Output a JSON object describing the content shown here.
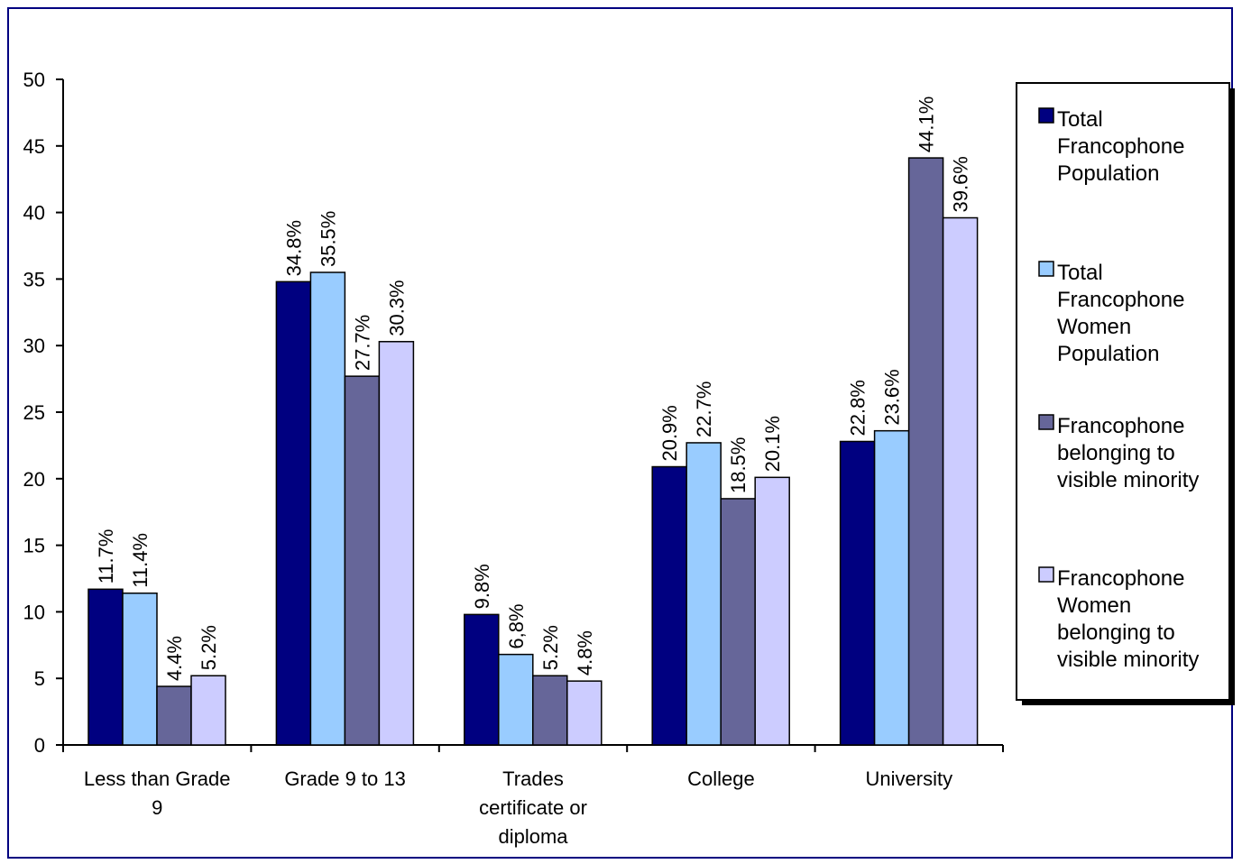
{
  "chart_data": {
    "type": "bar",
    "title": "",
    "xlabel": "",
    "ylabel": "",
    "ylim": [
      0,
      50
    ],
    "yticks": [
      0,
      5,
      10,
      15,
      20,
      25,
      30,
      35,
      40,
      45,
      50
    ],
    "grid": false,
    "legend_position": "right",
    "categories": [
      [
        "Less than Grade",
        "9"
      ],
      [
        "Grade 9 to 13"
      ],
      [
        "Trades",
        "certificate or",
        "diploma"
      ],
      [
        "College"
      ],
      [
        "University"
      ]
    ],
    "series": [
      {
        "name": [
          "Total",
          "Francophone",
          "Population"
        ],
        "color": "#000080",
        "values": [
          11.7,
          34.8,
          9.8,
          20.9,
          22.8
        ],
        "labels": [
          "11.7%",
          "34.8%",
          "9.8%",
          "20.9%",
          "22.8%"
        ]
      },
      {
        "name": [
          "Total",
          "Francophone",
          "Women",
          "Population"
        ],
        "color": "#99ccff",
        "values": [
          11.4,
          35.5,
          6.8,
          22.7,
          23.6
        ],
        "labels": [
          "11.4%",
          "35.5%",
          "6,8%",
          "22.7%",
          "23.6%"
        ]
      },
      {
        "name": [
          "Francophone",
          "belonging to",
          "visible minority"
        ],
        "color": "#666699",
        "values": [
          4.4,
          27.7,
          5.2,
          18.5,
          44.1
        ],
        "labels": [
          "4.4%",
          "27.7%",
          "5.2%",
          "18.5%",
          "44.1%"
        ]
      },
      {
        "name": [
          "Francophone",
          "Women",
          "belonging to",
          "visible minority"
        ],
        "color": "#ccccff",
        "values": [
          5.2,
          30.3,
          4.8,
          20.1,
          39.6
        ],
        "labels": [
          "5.2%",
          "30.3%",
          "4.8%",
          "20.1%",
          "39.6%"
        ]
      }
    ]
  }
}
